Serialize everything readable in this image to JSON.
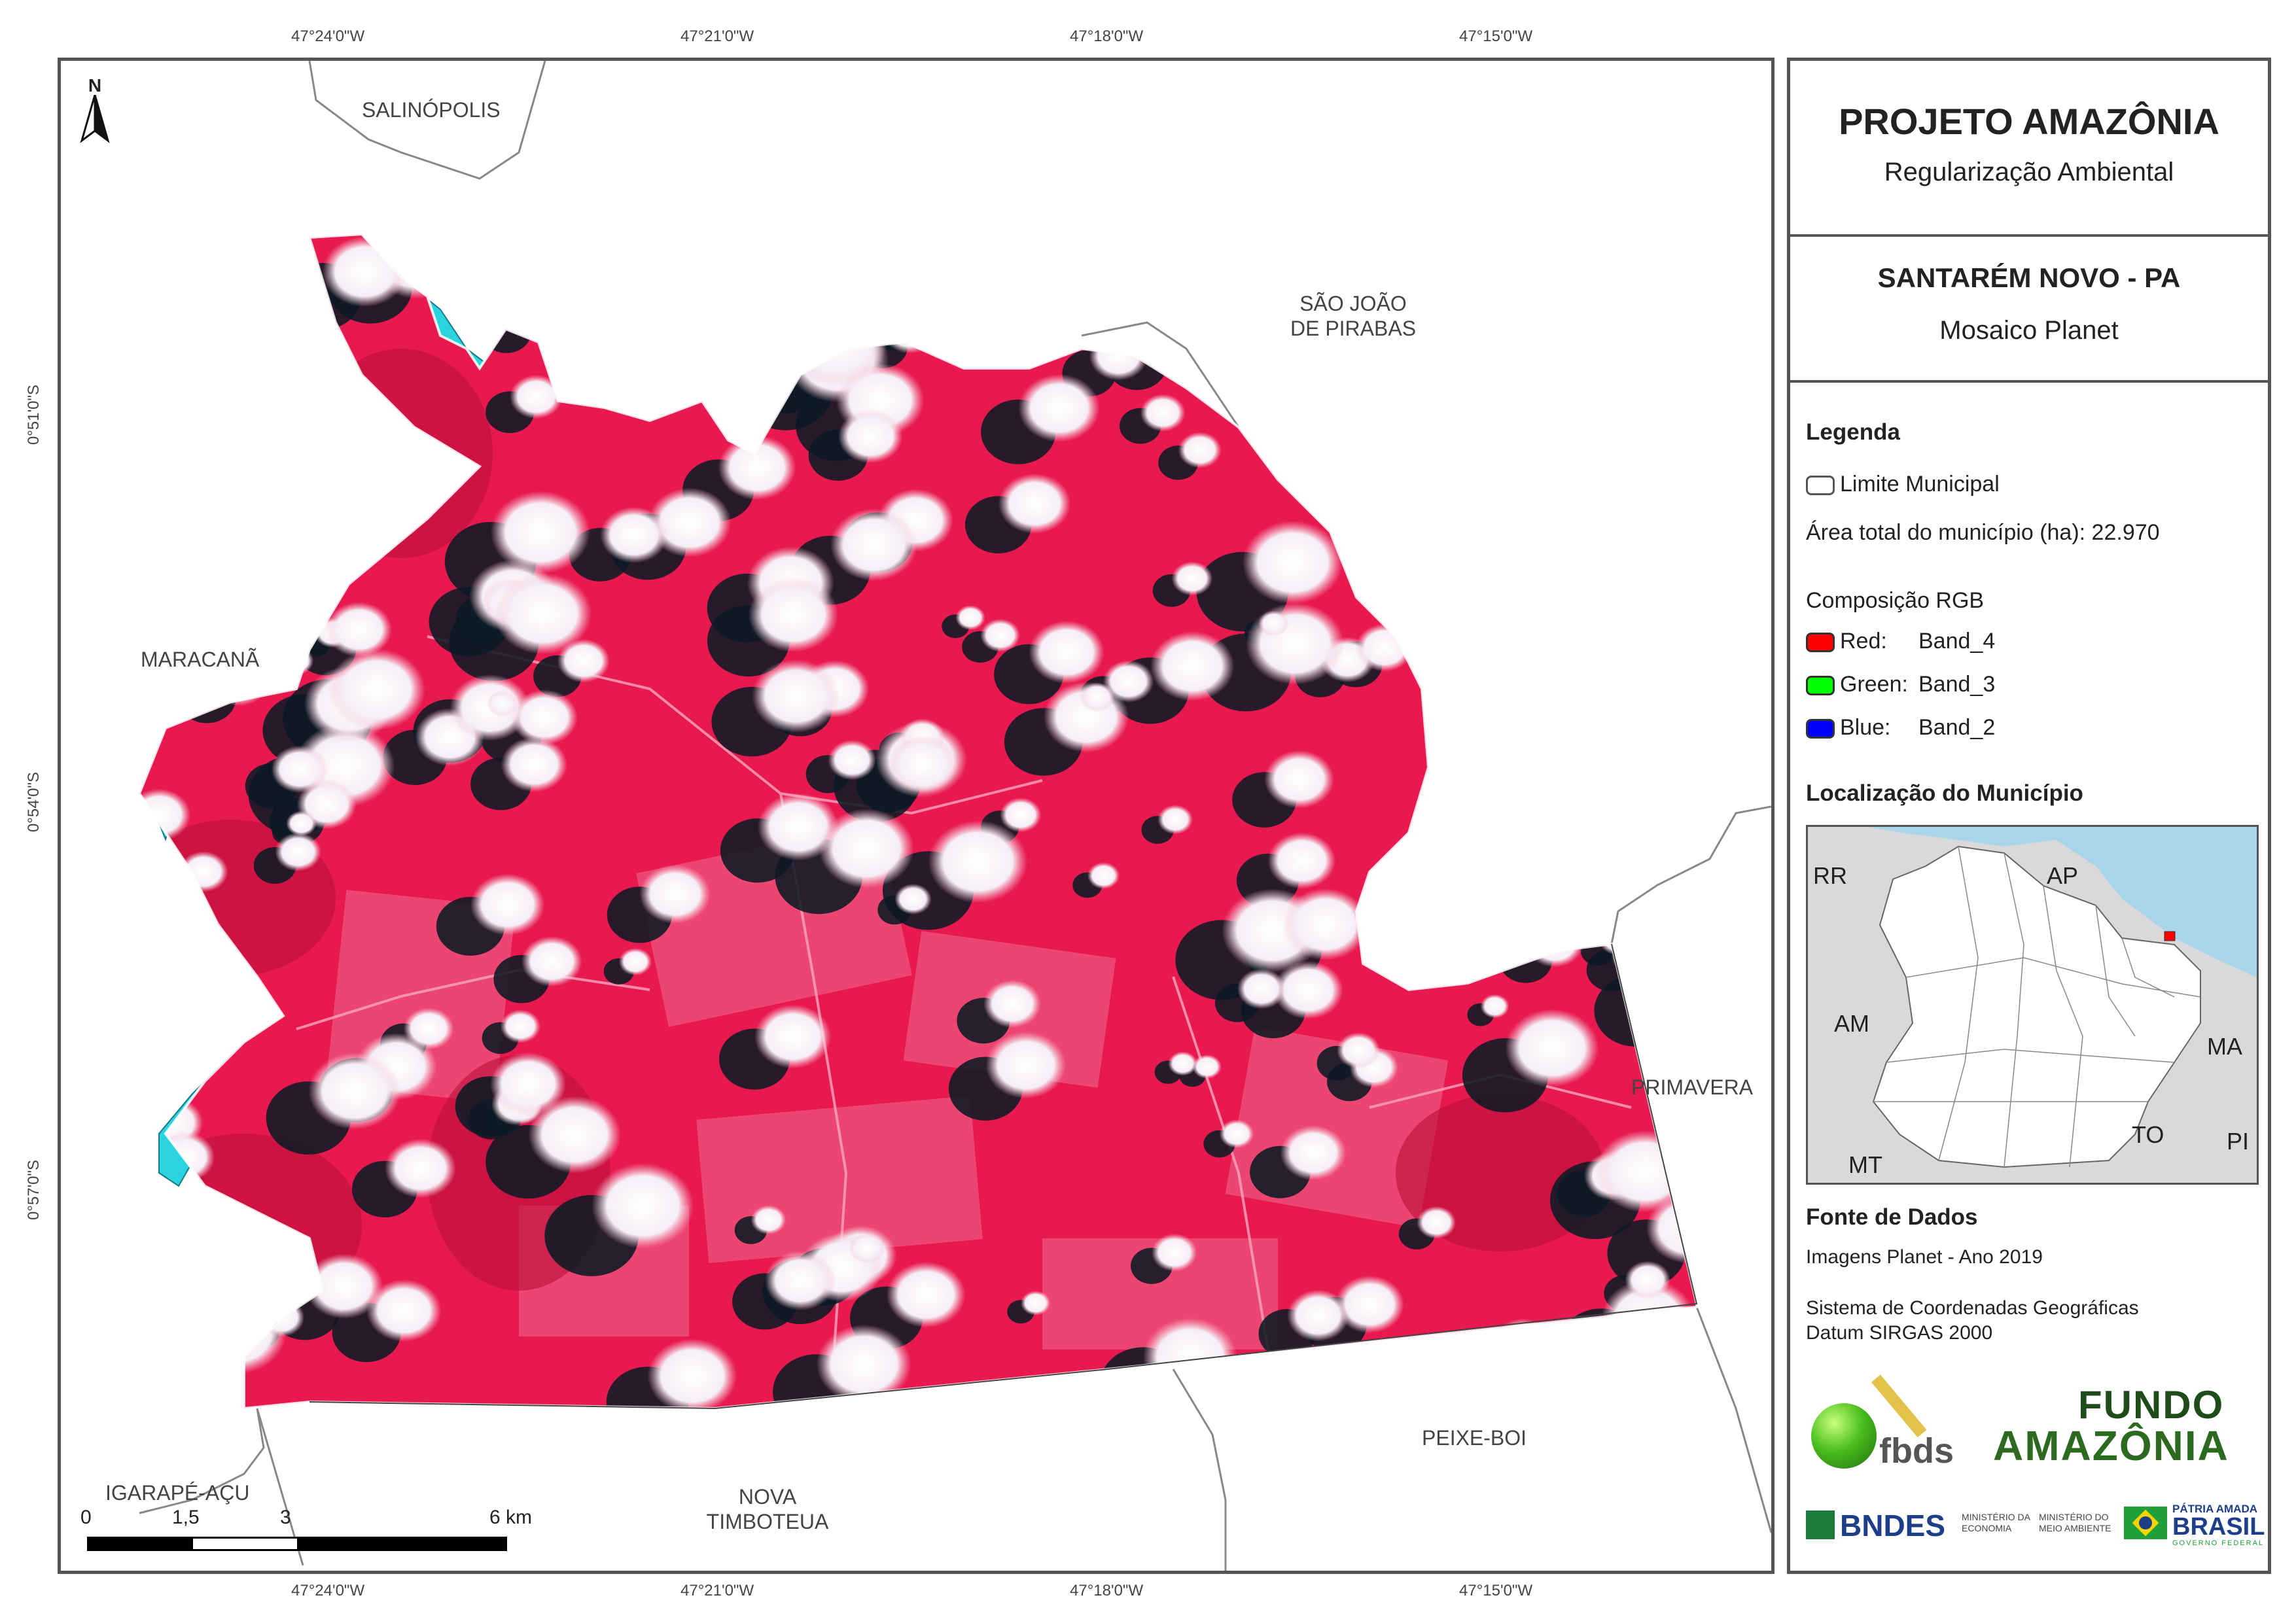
{
  "coords": {
    "top": [
      "47°24'0\"W",
      "47°21'0\"W",
      "47°18'0\"W",
      "47°15'0\"W"
    ],
    "bottom": [
      "47°24'0\"W",
      "47°21'0\"W",
      "47°18'0\"W",
      "47°15'0\"W"
    ],
    "left": [
      "0°51'0\"S",
      "0°54'0\"S",
      "0°57'0\"S"
    ]
  },
  "north_label": "N",
  "municipalities": {
    "salinopolis": "SALINÓPOLIS",
    "sao_joao_line1": "SÃO JOÃO",
    "sao_joao_line2": "DE PIRABAS",
    "maracana": "MARACANÃ",
    "primavera": "PRIMAVERA",
    "peixe_boi": "PEIXE-BOI",
    "nova_line1": "NOVA",
    "nova_line2": "TIMBOTEUA",
    "igarape": "IGARAPÉ-AÇU"
  },
  "scale_bar": {
    "labels": [
      "0",
      "1,5",
      "3",
      "6 km"
    ]
  },
  "panel": {
    "title": "PROJETO AMAZÔNIA",
    "subtitle": "Regularização Ambiental",
    "place": "SANTARÉM NOVO - PA",
    "mosaic": "Mosaico Planet",
    "legend_heading": "Legenda",
    "legend_limit": "Limite Municipal",
    "legend_area": "Área total do município (ha): 22.970",
    "rgb_heading": "Composição RGB",
    "rgb": [
      {
        "band": "Red:",
        "value": "Band_4",
        "color": "#ff0000"
      },
      {
        "band": "Green:",
        "value": "Band_3",
        "color": "#00ff00"
      },
      {
        "band": "Blue:",
        "value": "Band_2",
        "color": "#0000ff"
      }
    ],
    "location_heading": "Localização do Município",
    "inset_labels": {
      "rr": "RR",
      "ap": "AP",
      "am": "AM",
      "ma": "MA",
      "to": "TO",
      "mt": "MT",
      "pi": "PI"
    },
    "sources_heading": "Fonte de Dados",
    "source_images": "Imagens Planet - Ano 2019",
    "coord_system_1": "Sistema de Coordenadas Geográficas",
    "coord_system_2": "Datum SIRGAS 2000",
    "logos": {
      "fbds": "fbds",
      "fundo_1": "FUNDO",
      "fundo_2": "AMAZÔNIA",
      "bndes": "BNDES",
      "min_eco_1": "MINISTÉRIO DA",
      "min_eco_2": "ECONOMIA",
      "min_amb_1": "MINISTÉRIO DO",
      "min_amb_2": "MEIO AMBIENTE",
      "patria": "PÁTRIA AMADA",
      "brasil": "BRASIL",
      "gov": "GOVERNO FEDERAL"
    }
  },
  "colors": {
    "vegetation": "#e8194f",
    "water": "#2ad3dd",
    "cloud": "#ffffff",
    "shadow": "#0d1a26",
    "frame": "#555555"
  }
}
